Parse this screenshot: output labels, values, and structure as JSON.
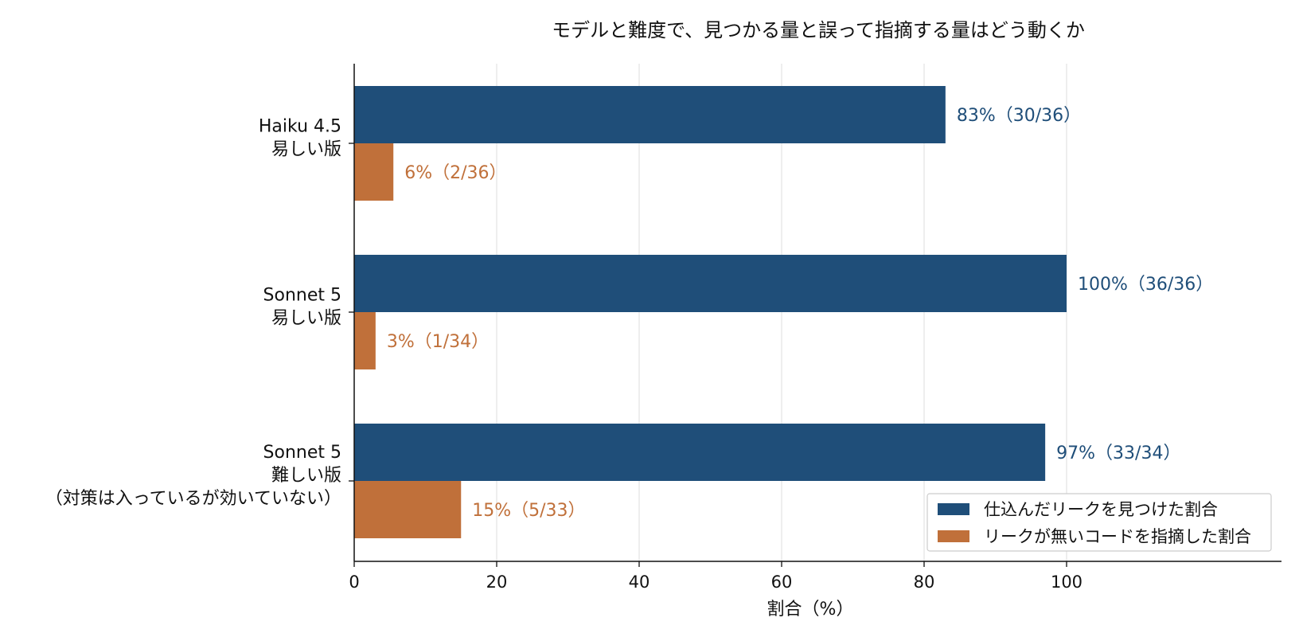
{
  "chart_data": {
    "type": "bar",
    "orientation": "horizontal",
    "title": "モデルと難度で、見つかる量と誤って指摘する量はどう動くか",
    "xlabel": "割合（%）",
    "ylabel": "",
    "xlim": [
      0,
      130
    ],
    "xticks": [
      "0",
      "20",
      "40",
      "60",
      "80",
      "100"
    ],
    "xtick_values": [
      0,
      20,
      40,
      60,
      80,
      100
    ],
    "grid": "vertical",
    "legend_position": "bottom-right",
    "categories": [
      [
        "Haiku 4.5",
        "易しい版"
      ],
      [
        "Sonnet 5",
        "易しい版"
      ],
      [
        "Sonnet 5",
        "難しい版",
        "（対策は入っているが効いていない）"
      ]
    ],
    "series": [
      {
        "name": "仕込んだリークを見つけた割合",
        "color": "#1f4e79",
        "values": [
          83,
          100,
          97
        ],
        "labels": [
          "83%（30/36）",
          "100%（36/36）",
          "97%（33/34）"
        ]
      },
      {
        "name": "リークが無いコードを指摘した割合",
        "color": "#c0703a",
        "values": [
          5.5,
          3,
          15
        ],
        "labels": [
          "6%（2/36）",
          "3%（1/34）",
          "15%（5/33）"
        ]
      }
    ]
  }
}
